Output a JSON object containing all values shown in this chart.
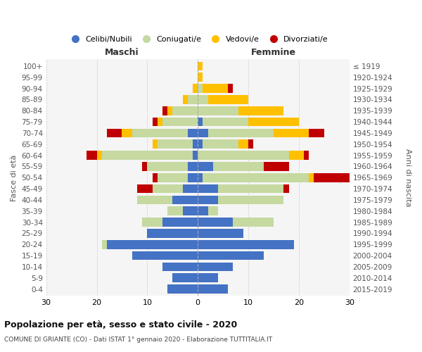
{
  "age_groups": [
    "0-4",
    "5-9",
    "10-14",
    "15-19",
    "20-24",
    "25-29",
    "30-34",
    "35-39",
    "40-44",
    "45-49",
    "50-54",
    "55-59",
    "60-64",
    "65-69",
    "70-74",
    "75-79",
    "80-84",
    "85-89",
    "90-94",
    "95-99",
    "100+"
  ],
  "birth_years": [
    "2015-2019",
    "2010-2014",
    "2005-2009",
    "2000-2004",
    "1995-1999",
    "1990-1994",
    "1985-1989",
    "1980-1984",
    "1975-1979",
    "1970-1974",
    "1965-1969",
    "1960-1964",
    "1955-1959",
    "1950-1954",
    "1945-1949",
    "1940-1944",
    "1935-1939",
    "1930-1934",
    "1925-1929",
    "1920-1924",
    "≤ 1919"
  ],
  "males": {
    "celibi": [
      6,
      5,
      7,
      13,
      18,
      10,
      7,
      3,
      5,
      3,
      2,
      2,
      1,
      1,
      2,
      0,
      0,
      0,
      0,
      0,
      0
    ],
    "coniugati": [
      0,
      0,
      0,
      0,
      1,
      0,
      4,
      3,
      7,
      6,
      6,
      8,
      18,
      7,
      11,
      7,
      5,
      2,
      0,
      0,
      0
    ],
    "vedovi": [
      0,
      0,
      0,
      0,
      0,
      0,
      0,
      0,
      0,
      0,
      0,
      0,
      1,
      1,
      2,
      1,
      1,
      1,
      1,
      0,
      0
    ],
    "divorziati": [
      0,
      0,
      0,
      0,
      0,
      0,
      0,
      0,
      0,
      3,
      1,
      1,
      2,
      0,
      3,
      1,
      1,
      0,
      0,
      0,
      0
    ]
  },
  "females": {
    "nubili": [
      6,
      4,
      7,
      13,
      19,
      9,
      7,
      2,
      4,
      4,
      1,
      3,
      0,
      1,
      2,
      1,
      0,
      0,
      0,
      0,
      0
    ],
    "coniugate": [
      0,
      0,
      0,
      0,
      0,
      0,
      8,
      2,
      13,
      13,
      21,
      10,
      18,
      7,
      13,
      9,
      8,
      2,
      1,
      0,
      0
    ],
    "vedove": [
      0,
      0,
      0,
      0,
      0,
      0,
      0,
      0,
      0,
      0,
      1,
      0,
      3,
      2,
      7,
      10,
      9,
      8,
      5,
      1,
      1
    ],
    "divorziate": [
      0,
      0,
      0,
      0,
      0,
      0,
      0,
      0,
      0,
      1,
      7,
      5,
      1,
      1,
      3,
      0,
      0,
      0,
      1,
      0,
      0
    ]
  },
  "colors": {
    "celibi": "#4472c4",
    "coniugati": "#c5d9a0",
    "vedovi": "#ffc000",
    "divorziati": "#c00000"
  },
  "xlim": 30,
  "title": "Popolazione per età, sesso e stato civile - 2020",
  "subtitle": "COMUNE DI GRIANTE (CO) - Dati ISTAT 1° gennaio 2020 - Elaborazione TUTTITALIA.IT",
  "legend_labels": [
    "Celibi/Nubili",
    "Coniugati/e",
    "Vedovi/e",
    "Divorziati/e"
  ],
  "xlabel_left": "Maschi",
  "xlabel_right": "Femmine",
  "ylabel": "Fasce di età",
  "ylabel_right": "Anni di nascita",
  "bg_color": "#f5f5f5",
  "bar_height": 0.8
}
